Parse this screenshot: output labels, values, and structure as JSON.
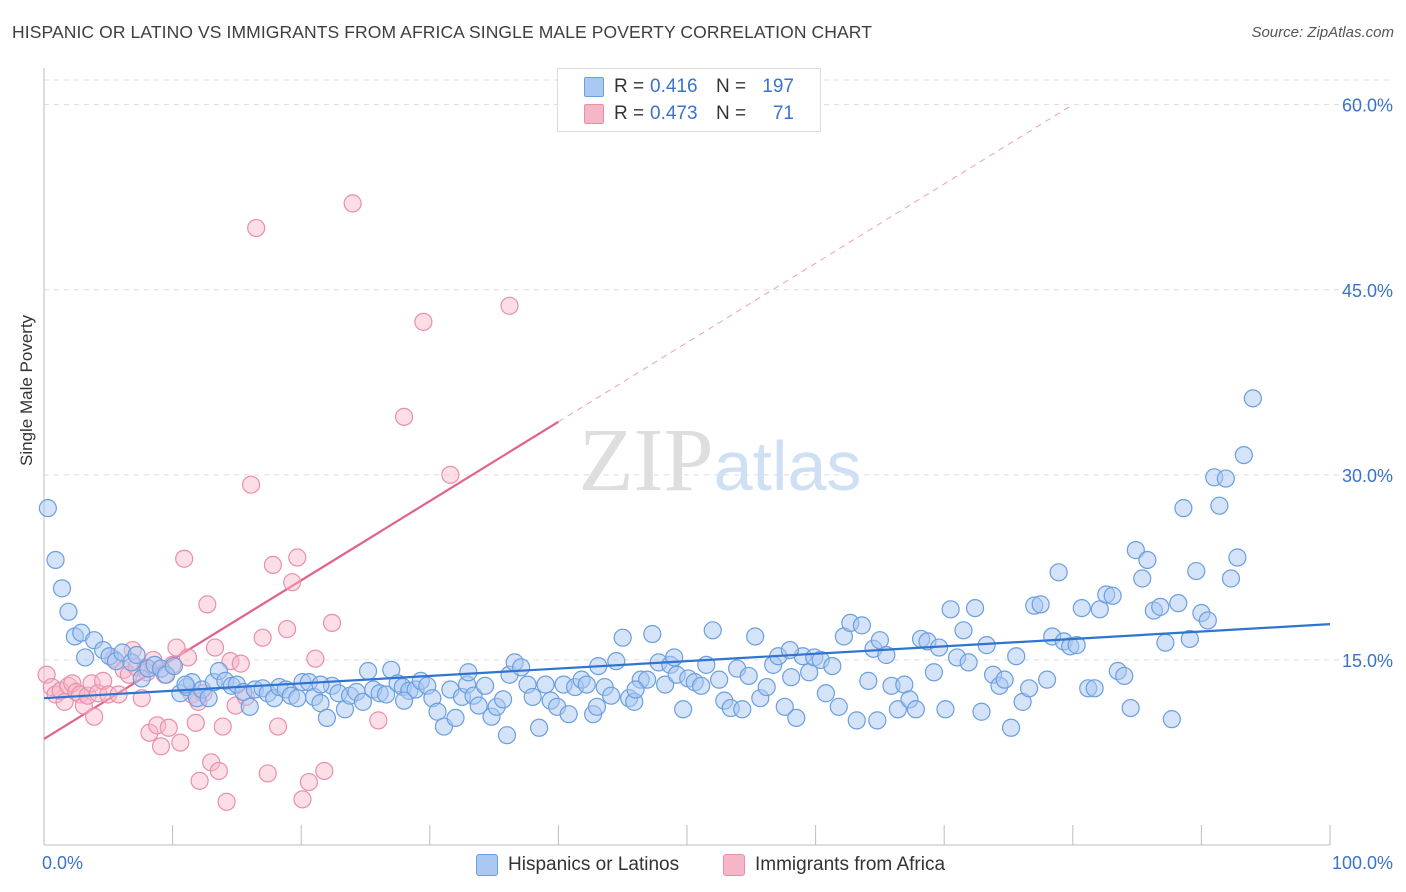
{
  "title": "HISPANIC OR LATINO VS IMMIGRANTS FROM AFRICA SINGLE MALE POVERTY CORRELATION CHART",
  "source": "Source: ZipAtlas.com",
  "watermark": "ZIPatlas",
  "colors": {
    "blue_fill": "#a9c8f2",
    "blue_stroke": "#6a9fe0",
    "blue_line": "#2f74cf",
    "pink_fill": "#f6b6c8",
    "pink_stroke": "#ea8fab",
    "pink_line": "#e0628a",
    "axis_text": "#3a73c9",
    "grid": "#dcdcdc"
  },
  "legend": {
    "rows": [
      {
        "r_label": "R =",
        "r_value": "0.416",
        "n_label": "N =",
        "n_value": "197",
        "color": "#a9c8f2",
        "border": "#6a9fe0"
      },
      {
        "r_label": "R =",
        "r_value": "0.473",
        "n_label": "N =",
        "n_value": "71",
        "color": "#f6b6c8",
        "border": "#ea8fab"
      }
    ]
  },
  "bottom_legend": [
    {
      "label": "Hispanics or Latinos",
      "color": "#a9c8f2",
      "border": "#6a9fe0"
    },
    {
      "label": "Immigrants from Africa",
      "color": "#f6b6c8",
      "border": "#ea8fab"
    }
  ],
  "chart_data": {
    "type": "scatter",
    "title": "HISPANIC OR LATINO VS IMMIGRANTS FROM AFRICA SINGLE MALE POVERTY CORRELATION CHART",
    "xlabel": "",
    "ylabel": "Single Male Poverty",
    "xlim": [
      0,
      100
    ],
    "ylim": [
      0,
      60
    ],
    "x_tick_labels": [
      "0.0%",
      "100.0%"
    ],
    "y_ticks": [
      15,
      30,
      45,
      60
    ],
    "y_tick_labels": [
      "15.0%",
      "30.0%",
      "45.0%",
      "60.0%"
    ],
    "grid": "horizontal dashed",
    "legend_position": "top-center",
    "series": [
      {
        "name": "Hispanics or Latinos",
        "R": 0.416,
        "N": 197,
        "trend": {
          "x": [
            0,
            100
          ],
          "y": [
            11.9,
            17.9
          ]
        },
        "points": [
          [
            0.3,
            27.3
          ],
          [
            0.9,
            23.1
          ],
          [
            1.4,
            20.8
          ],
          [
            1.9,
            18.9
          ],
          [
            2.4,
            16.9
          ],
          [
            2.9,
            17.2
          ],
          [
            3.2,
            15.2
          ],
          [
            3.9,
            16.6
          ],
          [
            4.6,
            15.8
          ],
          [
            5.1,
            15.3
          ],
          [
            5.6,
            14.9
          ],
          [
            6.1,
            15.6
          ],
          [
            6.8,
            14.8
          ],
          [
            7.2,
            15.4
          ],
          [
            7.6,
            13.5
          ],
          [
            8.1,
            14.3
          ],
          [
            8.6,
            14.6
          ],
          [
            9.1,
            14.3
          ],
          [
            9.5,
            13.8
          ],
          [
            10.1,
            14.5
          ],
          [
            10.6,
            12.3
          ],
          [
            11.1,
            12.8
          ],
          [
            11.5,
            13.2
          ],
          [
            11.9,
            11.9
          ],
          [
            12.3,
            12.6
          ],
          [
            12.8,
            11.9
          ],
          [
            13.2,
            13.2
          ],
          [
            13.6,
            14.1
          ],
          [
            14.1,
            13.3
          ],
          [
            14.6,
            12.9
          ],
          [
            15.0,
            13.0
          ],
          [
            15.5,
            12.4
          ],
          [
            16.0,
            11.2
          ],
          [
            16.4,
            12.6
          ],
          [
            17.0,
            12.7
          ],
          [
            17.4,
            12.3
          ],
          [
            17.9,
            11.9
          ],
          [
            18.3,
            12.8
          ],
          [
            18.8,
            12.6
          ],
          [
            19.2,
            12.1
          ],
          [
            19.7,
            11.9
          ],
          [
            20.1,
            13.2
          ],
          [
            20.6,
            13.2
          ],
          [
            21.0,
            12.0
          ],
          [
            21.5,
            11.5
          ],
          [
            22.0,
            10.3
          ],
          [
            22.4,
            12.9
          ],
          [
            22.9,
            12.3
          ],
          [
            23.4,
            11.0
          ],
          [
            23.8,
            12.1
          ],
          [
            24.3,
            12.4
          ],
          [
            24.8,
            11.6
          ],
          [
            25.2,
            14.1
          ],
          [
            25.6,
            12.6
          ],
          [
            26.1,
            12.3
          ],
          [
            26.6,
            12.2
          ],
          [
            27.0,
            14.2
          ],
          [
            27.5,
            13.1
          ],
          [
            27.9,
            12.8
          ],
          [
            28.4,
            12.5
          ],
          [
            28.9,
            12.6
          ],
          [
            29.3,
            13.3
          ],
          [
            29.8,
            12.9
          ],
          [
            30.2,
            11.9
          ],
          [
            30.6,
            10.8
          ],
          [
            31.1,
            9.6
          ],
          [
            31.6,
            12.6
          ],
          [
            32.0,
            10.3
          ],
          [
            32.5,
            12.0
          ],
          [
            32.9,
            13.0
          ],
          [
            33.4,
            12.1
          ],
          [
            33.8,
            11.3
          ],
          [
            34.3,
            12.9
          ],
          [
            34.8,
            10.4
          ],
          [
            35.2,
            11.2
          ],
          [
            35.7,
            11.8
          ],
          [
            36.2,
            13.8
          ],
          [
            36.6,
            14.8
          ],
          [
            37.1,
            14.4
          ],
          [
            37.6,
            13.0
          ],
          [
            38.0,
            12.0
          ],
          [
            38.5,
            9.5
          ],
          [
            39.0,
            13.0
          ],
          [
            39.4,
            11.7
          ],
          [
            39.9,
            11.2
          ],
          [
            40.4,
            13.0
          ],
          [
            40.8,
            10.6
          ],
          [
            41.3,
            12.8
          ],
          [
            41.8,
            13.4
          ],
          [
            42.2,
            13.0
          ],
          [
            42.7,
            10.6
          ],
          [
            43.1,
            14.5
          ],
          [
            43.6,
            12.8
          ],
          [
            44.1,
            12.1
          ],
          [
            44.5,
            14.9
          ],
          [
            45.0,
            16.8
          ],
          [
            45.5,
            11.9
          ],
          [
            45.9,
            11.6
          ],
          [
            46.4,
            13.4
          ],
          [
            46.9,
            13.4
          ],
          [
            47.3,
            17.1
          ],
          [
            47.8,
            14.8
          ],
          [
            48.3,
            13.0
          ],
          [
            48.7,
            14.6
          ],
          [
            49.2,
            13.8
          ],
          [
            49.7,
            11.0
          ],
          [
            50.1,
            13.5
          ],
          [
            50.6,
            13.2
          ],
          [
            51.1,
            12.9
          ],
          [
            51.5,
            14.6
          ],
          [
            52.0,
            17.4
          ],
          [
            52.5,
            13.4
          ],
          [
            52.9,
            11.7
          ],
          [
            53.4,
            11.1
          ],
          [
            53.9,
            14.3
          ],
          [
            54.3,
            11.0
          ],
          [
            54.8,
            13.7
          ],
          [
            55.3,
            16.9
          ],
          [
            55.7,
            11.9
          ],
          [
            56.2,
            12.8
          ],
          [
            56.7,
            14.6
          ],
          [
            57.1,
            15.3
          ],
          [
            57.6,
            11.2
          ],
          [
            58.1,
            13.6
          ],
          [
            58.5,
            10.3
          ],
          [
            59.0,
            15.3
          ],
          [
            59.5,
            14.0
          ],
          [
            59.9,
            15.2
          ],
          [
            60.4,
            15.0
          ],
          [
            60.8,
            12.3
          ],
          [
            61.3,
            14.5
          ],
          [
            61.8,
            11.2
          ],
          [
            62.2,
            16.9
          ],
          [
            62.7,
            18.0
          ],
          [
            63.2,
            10.1
          ],
          [
            63.6,
            17.8
          ],
          [
            64.1,
            13.3
          ],
          [
            64.5,
            15.9
          ],
          [
            65.0,
            16.6
          ],
          [
            65.5,
            15.4
          ],
          [
            65.9,
            12.9
          ],
          [
            66.4,
            11.0
          ],
          [
            66.9,
            13.0
          ],
          [
            67.3,
            11.8
          ],
          [
            67.8,
            11.0
          ],
          [
            68.2,
            16.7
          ],
          [
            68.7,
            16.5
          ],
          [
            69.2,
            14.0
          ],
          [
            69.6,
            16.0
          ],
          [
            70.1,
            11.0
          ],
          [
            70.5,
            19.1
          ],
          [
            71.0,
            15.2
          ],
          [
            71.5,
            17.4
          ],
          [
            71.9,
            14.8
          ],
          [
            72.4,
            19.2
          ],
          [
            72.9,
            10.8
          ],
          [
            73.3,
            16.2
          ],
          [
            73.8,
            13.8
          ],
          [
            74.3,
            12.9
          ],
          [
            74.7,
            13.4
          ],
          [
            75.2,
            9.5
          ],
          [
            75.6,
            15.3
          ],
          [
            76.1,
            11.6
          ],
          [
            76.6,
            12.7
          ],
          [
            77.0,
            19.4
          ],
          [
            77.5,
            19.5
          ],
          [
            78.0,
            13.4
          ],
          [
            78.4,
            16.9
          ],
          [
            78.9,
            22.1
          ],
          [
            79.3,
            16.5
          ],
          [
            79.8,
            16.1
          ],
          [
            80.3,
            16.2
          ],
          [
            80.7,
            19.2
          ],
          [
            81.2,
            12.7
          ],
          [
            81.7,
            12.7
          ],
          [
            82.1,
            19.1
          ],
          [
            82.6,
            20.3
          ],
          [
            83.1,
            20.2
          ],
          [
            83.5,
            14.1
          ],
          [
            84.0,
            13.7
          ],
          [
            84.5,
            11.1
          ],
          [
            84.9,
            23.9
          ],
          [
            85.4,
            21.6
          ],
          [
            85.8,
            23.1
          ],
          [
            86.3,
            19.0
          ],
          [
            86.8,
            19.3
          ],
          [
            87.2,
            16.4
          ],
          [
            87.7,
            10.2
          ],
          [
            88.2,
            19.6
          ],
          [
            88.6,
            27.3
          ],
          [
            89.1,
            16.7
          ],
          [
            89.6,
            22.2
          ],
          [
            90.0,
            18.8
          ],
          [
            90.5,
            18.2
          ],
          [
            91.0,
            29.8
          ],
          [
            91.4,
            27.5
          ],
          [
            91.9,
            29.7
          ],
          [
            92.3,
            21.6
          ],
          [
            92.8,
            23.3
          ],
          [
            93.3,
            31.6
          ],
          [
            94.0,
            36.2
          ],
          [
            64.8,
            10.1
          ],
          [
            36.0,
            8.9
          ],
          [
            46.0,
            12.6
          ],
          [
            28.0,
            11.7
          ],
          [
            58.0,
            15.8
          ],
          [
            33.0,
            14.0
          ],
          [
            21.5,
            13.0
          ],
          [
            49.0,
            15.2
          ],
          [
            11.0,
            13.0
          ],
          [
            43.0,
            11.2
          ]
        ]
      },
      {
        "name": "Immigrants from Africa",
        "R": 0.473,
        "N": 71,
        "trend_solid": {
          "x": [
            0,
            40
          ],
          "y": [
            8.6,
            34.3
          ]
        },
        "trend_dashed": {
          "x": [
            40,
            80
          ],
          "y": [
            34.3,
            60.0
          ]
        },
        "points": [
          [
            0.2,
            13.8
          ],
          [
            0.6,
            12.8
          ],
          [
            0.9,
            12.2
          ],
          [
            1.3,
            12.5
          ],
          [
            1.6,
            11.6
          ],
          [
            1.9,
            12.9
          ],
          [
            2.2,
            13.1
          ],
          [
            2.5,
            12.4
          ],
          [
            2.8,
            12.2
          ],
          [
            3.1,
            11.3
          ],
          [
            3.4,
            12.1
          ],
          [
            3.7,
            13.1
          ],
          [
            3.9,
            10.4
          ],
          [
            4.2,
            12.3
          ],
          [
            4.6,
            13.3
          ],
          [
            5.0,
            12.2
          ],
          [
            5.4,
            15.1
          ],
          [
            5.8,
            12.2
          ],
          [
            6.2,
            14.2
          ],
          [
            6.6,
            13.8
          ],
          [
            6.9,
            15.8
          ],
          [
            7.2,
            14.4
          ],
          [
            7.6,
            11.9
          ],
          [
            7.9,
            14.4
          ],
          [
            8.2,
            9.1
          ],
          [
            8.5,
            15.0
          ],
          [
            8.8,
            9.7
          ],
          [
            9.1,
            8.0
          ],
          [
            9.4,
            13.8
          ],
          [
            9.7,
            9.5
          ],
          [
            10.0,
            14.6
          ],
          [
            10.3,
            16.0
          ],
          [
            10.6,
            8.3
          ],
          [
            10.9,
            23.2
          ],
          [
            11.2,
            15.2
          ],
          [
            11.5,
            12.2
          ],
          [
            11.8,
            9.9
          ],
          [
            12.1,
            5.2
          ],
          [
            12.4,
            12.3
          ],
          [
            12.7,
            19.5
          ],
          [
            13.0,
            6.7
          ],
          [
            13.3,
            16.0
          ],
          [
            13.6,
            6.0
          ],
          [
            13.9,
            9.6
          ],
          [
            14.2,
            3.5
          ],
          [
            14.5,
            14.9
          ],
          [
            14.9,
            11.3
          ],
          [
            15.3,
            14.7
          ],
          [
            15.7,
            12.0
          ],
          [
            16.1,
            29.2
          ],
          [
            16.5,
            50.0
          ],
          [
            17.0,
            16.8
          ],
          [
            17.4,
            5.8
          ],
          [
            17.8,
            22.7
          ],
          [
            18.2,
            9.6
          ],
          [
            18.9,
            17.5
          ],
          [
            19.3,
            21.3
          ],
          [
            19.7,
            23.3
          ],
          [
            20.1,
            3.7
          ],
          [
            20.6,
            5.1
          ],
          [
            21.1,
            15.1
          ],
          [
            21.8,
            6.0
          ],
          [
            22.4,
            18.0
          ],
          [
            24.0,
            52.0
          ],
          [
            26.0,
            10.1
          ],
          [
            28.0,
            34.7
          ],
          [
            29.5,
            42.4
          ],
          [
            31.6,
            30.0
          ],
          [
            36.2,
            43.7
          ],
          [
            12.0,
            11.6
          ],
          [
            8.0,
            14.0
          ]
        ]
      }
    ]
  }
}
